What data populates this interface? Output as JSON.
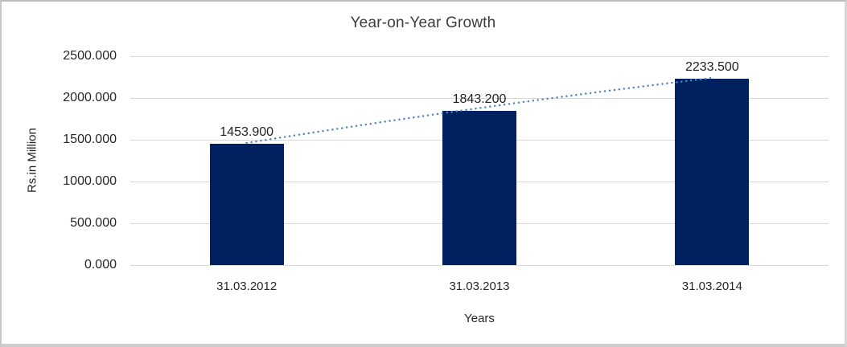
{
  "window": {
    "background": "#ffffff",
    "border_color": "#c6c6c6"
  },
  "chart_data": {
    "type": "bar",
    "title": "Year-on-Year Growth",
    "categories": [
      "31.03.2012",
      "31.03.2013",
      "31.03.2014"
    ],
    "values": [
      1453.9,
      1843.2,
      2233.5
    ],
    "value_labels": [
      "1453.900",
      "1843.200",
      "2233.500"
    ],
    "xlabel": "Years",
    "ylabel": "Rs.in Million",
    "ylim": [
      0,
      2500
    ],
    "ytick_interval": 500,
    "ytick_labels": [
      "0.000",
      "500.000",
      "1000.000",
      "1500.000",
      "2000.000",
      "2500.000"
    ],
    "grid": true,
    "legend_position": "none",
    "bar_color": "#002060",
    "gridline_color": "#d9d9d9",
    "title_color": "#3c3c3c",
    "axis_text_color": "#262626",
    "trendline": {
      "style": "dotted",
      "color": "#4e86c6"
    }
  }
}
